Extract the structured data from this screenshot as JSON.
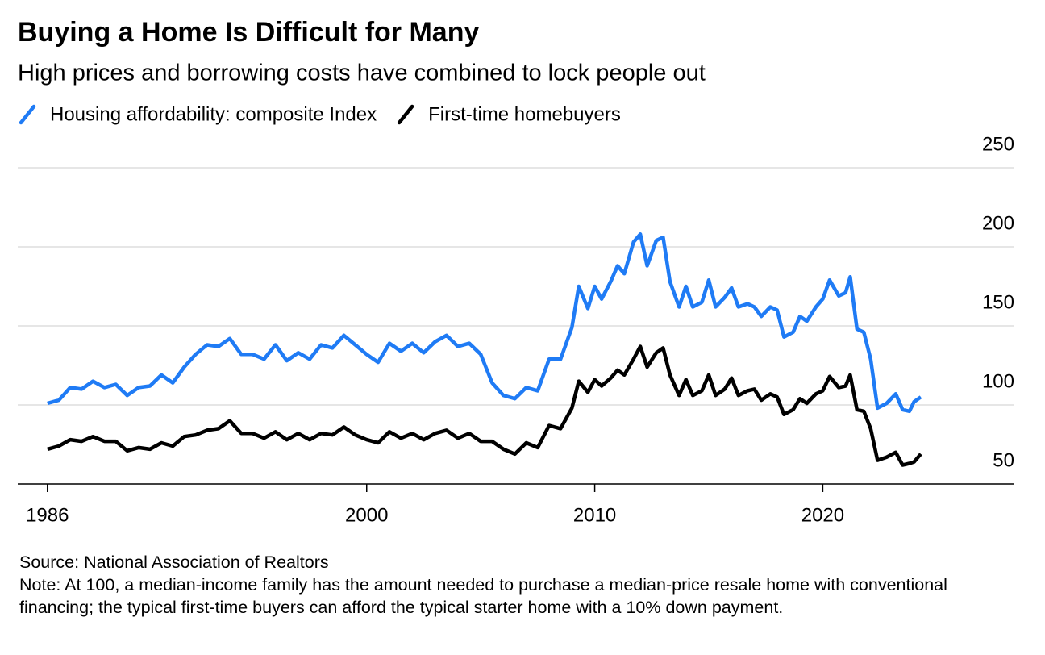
{
  "chart_data": {
    "type": "line",
    "title": "Buying a Home Is Difficult for Many",
    "subtitle": "High prices and borrowing costs have combined to lock people out",
    "source": "Source: National Association of Realtors",
    "note": "Note: At 100, a median-income family has the amount needed to purchase a median-price resale home with conventional financing; the typical first-time buyers can afford the typical starter home with a 10% down payment.",
    "x": [
      1986.0,
      1986.5,
      1987.0,
      1987.5,
      1988.0,
      1988.5,
      1989.0,
      1989.5,
      1990.0,
      1990.5,
      1991.0,
      1991.5,
      1992.0,
      1992.5,
      1993.0,
      1993.5,
      1994.0,
      1994.5,
      1995.0,
      1995.5,
      1996.0,
      1996.5,
      1997.0,
      1997.5,
      1998.0,
      1998.5,
      1999.0,
      1999.5,
      2000.0,
      2000.5,
      2001.0,
      2001.5,
      2002.0,
      2002.5,
      2003.0,
      2003.5,
      2004.0,
      2004.5,
      2005.0,
      2005.5,
      2006.0,
      2006.5,
      2007.0,
      2007.5,
      2008.0,
      2008.5,
      2009.0,
      2009.3,
      2009.7,
      2010.0,
      2010.3,
      2010.7,
      2011.0,
      2011.3,
      2011.7,
      2012.0,
      2012.3,
      2012.7,
      2013.0,
      2013.3,
      2013.7,
      2014.0,
      2014.3,
      2014.7,
      2015.0,
      2015.3,
      2015.7,
      2016.0,
      2016.3,
      2016.7,
      2017.0,
      2017.3,
      2017.7,
      2018.0,
      2018.3,
      2018.7,
      2019.0,
      2019.3,
      2019.7,
      2020.0,
      2020.3,
      2020.7,
      2021.0,
      2021.2,
      2021.5,
      2021.8,
      2022.1,
      2022.4,
      2022.8,
      2023.2,
      2023.5,
      2023.8,
      2024.0,
      2024.3
    ],
    "series": [
      {
        "name": "Housing affordability: composite Index",
        "color": "#1f7bf5",
        "values": [
          101,
          103,
          111,
          110,
          115,
          111,
          113,
          106,
          111,
          112,
          119,
          114,
          124,
          132,
          138,
          137,
          142,
          132,
          132,
          129,
          138,
          128,
          133,
          129,
          138,
          136,
          144,
          138,
          132,
          127,
          139,
          134,
          139,
          133,
          140,
          144,
          137,
          139,
          132,
          114,
          106,
          104,
          111,
          109,
          129,
          129,
          149,
          175,
          161,
          175,
          167,
          178,
          188,
          183,
          203,
          208,
          188,
          204,
          206,
          178,
          162,
          175,
          162,
          165,
          179,
          162,
          168,
          174,
          162,
          164,
          162,
          156,
          162,
          160,
          143,
          146,
          156,
          153,
          162,
          167,
          179,
          169,
          171,
          181,
          148,
          146,
          129,
          98,
          101,
          107,
          97,
          96,
          102,
          105
        ]
      },
      {
        "name": "First-time homebuyers",
        "color": "#000000",
        "values": [
          72,
          74,
          78,
          77,
          80,
          77,
          77,
          71,
          73,
          72,
          76,
          74,
          80,
          81,
          84,
          85,
          90,
          82,
          82,
          79,
          83,
          78,
          82,
          78,
          82,
          81,
          86,
          81,
          78,
          76,
          83,
          79,
          82,
          78,
          82,
          84,
          79,
          82,
          77,
          77,
          72,
          69,
          76,
          73,
          87,
          85,
          98,
          115,
          108,
          116,
          112,
          117,
          122,
          119,
          129,
          137,
          124,
          133,
          136,
          119,
          106,
          116,
          106,
          109,
          119,
          106,
          110,
          117,
          106,
          109,
          110,
          103,
          107,
          105,
          94,
          97,
          104,
          101,
          107,
          109,
          118,
          111,
          112,
          119,
          97,
          96,
          85,
          65,
          67,
          70,
          62,
          63,
          64,
          69
        ]
      }
    ],
    "xlim": [
      1984.7,
      2028.4
    ],
    "xticks": [
      1986,
      2000,
      2010,
      2020
    ],
    "ylim": [
      50,
      250
    ],
    "yticks": [
      50,
      100,
      150,
      200,
      250
    ],
    "grid": true
  }
}
